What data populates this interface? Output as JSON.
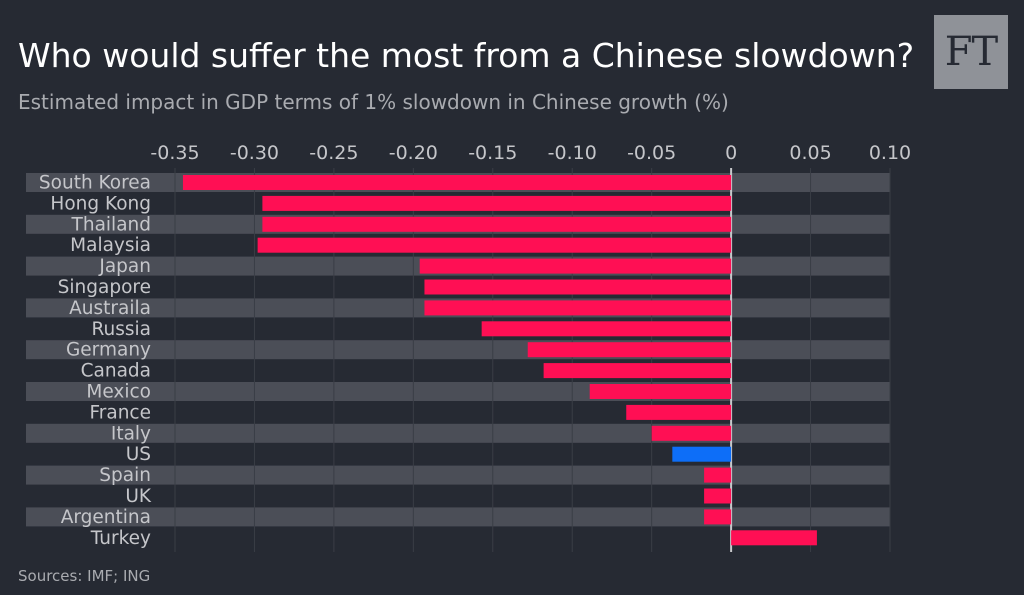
{
  "logo": "FT",
  "chart_data": {
    "type": "bar",
    "orientation": "horizontal",
    "title": "Who would suffer the most from a Chinese slowdown?",
    "subtitle": "Estimated impact in GDP terms of 1% slowdown in Chinese growth (%)",
    "source": "Sources: IMF; ING",
    "xlim": [
      -0.35,
      0.1
    ],
    "ticks": [
      -0.35,
      -0.3,
      -0.25,
      -0.2,
      -0.15,
      -0.1,
      -0.05,
      0,
      0.05,
      0.1
    ],
    "tick_labels": [
      "-0.35",
      "-0.30",
      "-0.25",
      "-0.20",
      "-0.15",
      "-0.10",
      "-0.05",
      "0",
      "0.05",
      "0.10"
    ],
    "categories": [
      "South Korea",
      "Hong Kong",
      "Thailand",
      "Malaysia",
      "Japan",
      "Singapore",
      "Austraila",
      "Russia",
      "Germany",
      "Canada",
      "Mexico",
      "France",
      "Italy",
      "US",
      "Spain",
      "UK",
      "Argentina",
      "Turkey"
    ],
    "values": [
      -0.345,
      -0.295,
      -0.295,
      -0.298,
      -0.196,
      -0.193,
      -0.193,
      -0.157,
      -0.128,
      -0.118,
      -0.089,
      -0.066,
      -0.05,
      -0.037,
      -0.017,
      -0.017,
      -0.017,
      0.054
    ],
    "highlight": "US",
    "colors": {
      "bar": "#ff0f54",
      "highlight": "#0d6ef8",
      "band": "#4b4e57",
      "background": "#262a33",
      "zero_line": "#c7c8cb"
    }
  }
}
